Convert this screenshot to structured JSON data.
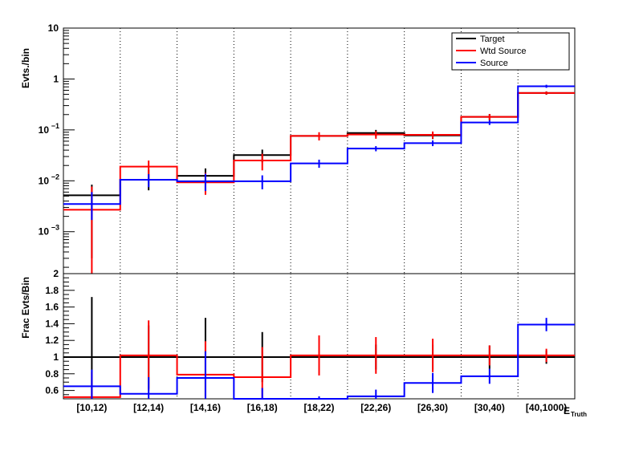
{
  "chart_data": [
    {
      "type": "step",
      "panel": "top",
      "ylabel": "Evts./bin",
      "yscale": "log",
      "ylim": [
        0.00015,
        10
      ],
      "y_ticks": [
        {
          "v": 10,
          "label": "10",
          "sup": ""
        },
        {
          "v": 1,
          "label": "1",
          "sup": ""
        },
        {
          "v": 0.1,
          "label": "10",
          "sup": "−1"
        },
        {
          "v": 0.01,
          "label": "10",
          "sup": "−2"
        },
        {
          "v": 0.001,
          "label": "10",
          "sup": "−3"
        }
      ],
      "categories": [
        "[10,12)",
        "[12,14)",
        "[14,16)",
        "[16,18)",
        "[18,22)",
        "[22,26)",
        "[26,30)",
        "[30,40)",
        "[40,1000)"
      ],
      "legend": {
        "placement": "top-right"
      },
      "series": [
        {
          "name": "Target",
          "color": "#000000",
          "values": [
            0.0052,
            0.0105,
            0.0125,
            0.032,
            0.076,
            0.087,
            0.078,
            0.18,
            0.53
          ],
          "err_lo": [
            0.0049,
            0.004,
            0.006,
            0.009,
            0.013,
            0.013,
            0.012,
            0.025,
            0.04
          ],
          "err_hi": [
            0.0032,
            0.006,
            0.005,
            0.009,
            0.013,
            0.013,
            0.012,
            0.025,
            0.04
          ]
        },
        {
          "name": "Wtd Source",
          "color": "#ff0000",
          "values": [
            0.0027,
            0.019,
            0.0093,
            0.025,
            0.076,
            0.081,
            0.08,
            0.18,
            0.53
          ],
          "err_lo": [
            0.00255,
            0.008,
            0.004,
            0.009,
            0.014,
            0.014,
            0.013,
            0.025,
            0.035
          ],
          "err_hi": [
            0.005,
            0.006,
            0.005,
            0.009,
            0.014,
            0.014,
            0.013,
            0.025,
            0.035
          ]
        },
        {
          "name": "Source",
          "color": "#0000ff",
          "values": [
            0.0035,
            0.0105,
            0.0098,
            0.0098,
            0.022,
            0.043,
            0.055,
            0.14,
            0.72
          ],
          "err_lo": [
            0.0018,
            0.003,
            0.0035,
            0.003,
            0.004,
            0.005,
            0.007,
            0.015,
            0.05
          ],
          "err_hi": [
            0.0025,
            0.003,
            0.004,
            0.003,
            0.004,
            0.005,
            0.007,
            0.015,
            0.05
          ]
        }
      ]
    },
    {
      "type": "step",
      "panel": "bottom",
      "ylabel": "Frac Evts/Bin",
      "xlabel": "E_{Truth}",
      "ylim": [
        0.5,
        2.0
      ],
      "y_ticks": [
        "2",
        "1.8",
        "1.6",
        "1.4",
        "1.2",
        "1",
        "0.8",
        "0.6"
      ],
      "categories": [
        "[10,12)",
        "[12,14)",
        "[14,16)",
        "[16,18)",
        "[18,22)",
        "[22,26)",
        "[26,30)",
        "[30,40)",
        "[40,1000)"
      ],
      "series": [
        {
          "name": "Target",
          "color": "#000000",
          "values": [
            1,
            1,
            1,
            1,
            1,
            1,
            1,
            1,
            1
          ],
          "err_lo": [
            1.0,
            0.38,
            0.47,
            0.3,
            0.17,
            0.15,
            0.15,
            0.14,
            0.08
          ],
          "err_hi": [
            0.72,
            0.38,
            0.47,
            0.3,
            0.17,
            0.15,
            0.15,
            0.14,
            0.08
          ]
        },
        {
          "name": "Wtd Source",
          "color": "#ff0000",
          "values": [
            0.52,
            1.02,
            0.79,
            0.76,
            1.02,
            1.02,
            1.02,
            1.02,
            1.02
          ],
          "err_lo": [
            0.3,
            0.42,
            0.4,
            0.36,
            0.24,
            0.22,
            0.2,
            0.12,
            0.08
          ],
          "err_hi": [
            0.3,
            0.42,
            0.4,
            0.36,
            0.24,
            0.22,
            0.2,
            0.12,
            0.08
          ]
        },
        {
          "name": "Source",
          "color": "#0000ff",
          "values": [
            0.65,
            0.56,
            0.75,
            0.48,
            0.48,
            0.53,
            0.69,
            0.77,
            1.39
          ],
          "err_lo": [
            0.2,
            0.2,
            0.32,
            0.15,
            0.05,
            0.08,
            0.12,
            0.09,
            0.08
          ],
          "err_hi": [
            0.2,
            0.2,
            0.32,
            0.15,
            0.05,
            0.08,
            0.12,
            0.09,
            0.08
          ]
        }
      ]
    }
  ]
}
